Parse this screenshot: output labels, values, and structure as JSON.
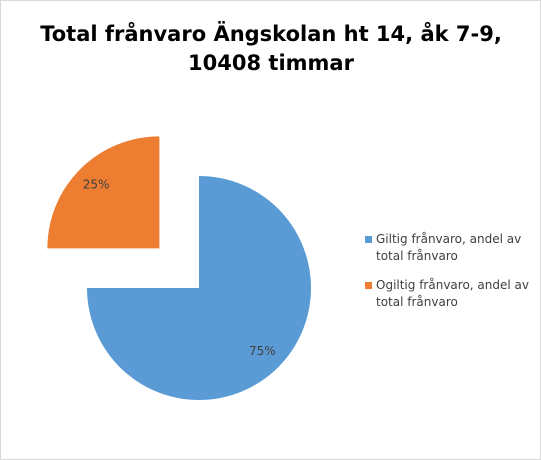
{
  "chart_data": {
    "type": "pie",
    "title": [
      "Total frånvaro Ängskolan ht 14, åk 7-9,",
      "10408 timmar"
    ],
    "categories": [
      "Giltig frånvaro, andel av total frånvaro",
      "Ogiltig frånvaro, andel av total frånvaro"
    ],
    "values": [
      75,
      25
    ],
    "value_labels": [
      "75%",
      "25%"
    ],
    "colors": [
      "#5b9bd5",
      "#ed7d31"
    ],
    "legend": "right"
  }
}
